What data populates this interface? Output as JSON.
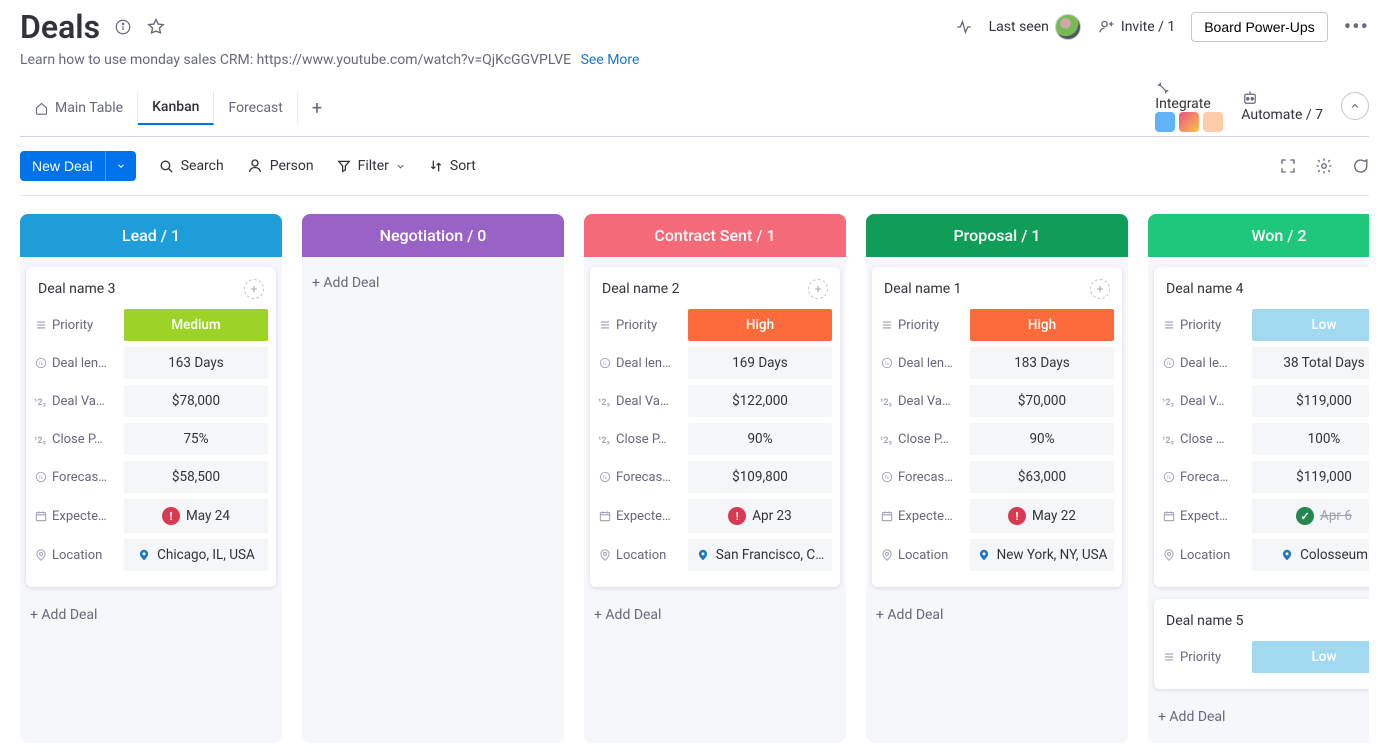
{
  "header": {
    "title": "Deals",
    "subtitle": "Learn how to use monday sales CRM: https://www.youtube.com/watch?v=QjKcGGVPLVE",
    "see_more": "See More",
    "last_seen": "Last seen",
    "invite": "Invite / 1",
    "powerups": "Board Power-Ups"
  },
  "tabs": {
    "items": [
      "Main Table",
      "Kanban",
      "Forecast"
    ],
    "active_index": 1,
    "integrate": "Integrate",
    "automate": "Automate / 7"
  },
  "toolbar": {
    "new_deal": "New Deal",
    "search": "Search",
    "person": "Person",
    "filter": "Filter",
    "sort": "Sort"
  },
  "add_deal_label": "+ Add Deal",
  "field_labels": {
    "priority": "Priority",
    "deal_len": "Deal len…",
    "deal_len2": "Deal le…",
    "deal_val": "Deal Va…",
    "deal_val2": "Deal V…",
    "close_p": "Close P…",
    "close_p2": "Close …",
    "forecast": "Forecas…",
    "forecast2": "Foreca…",
    "expected": "Expecte…",
    "expected2": "Expect…",
    "location": "Location"
  },
  "priority_colors": {
    "High": "#fb6a3b",
    "Medium": "#9cd326",
    "Low": "#a1d9f0"
  },
  "status_colors": {
    "overdue": "#d83a52",
    "done": "#258750"
  },
  "columns": [
    {
      "title": "Lead / 1",
      "color": "#1f9dd9",
      "cards": [
        {
          "name": "Deal name 3",
          "priority": "Medium",
          "deal_len": "163 Days",
          "deal_val": "$78,000",
          "close_p": "75%",
          "forecast": "$58,500",
          "expected": "May 24",
          "expected_status": "overdue",
          "location": "Chicago, IL, USA"
        }
      ]
    },
    {
      "title": "Negotiation / 0",
      "color": "#9862c6",
      "cards": []
    },
    {
      "title": "Contract Sent / 1",
      "color": "#f56a79",
      "cards": [
        {
          "name": "Deal name 2",
          "priority": "High",
          "deal_len": "169 Days",
          "deal_val": "$122,000",
          "close_p": "90%",
          "forecast": "$109,800",
          "expected": "Apr 23",
          "expected_status": "overdue",
          "location": "San Francisco, C…"
        }
      ]
    },
    {
      "title": "Proposal / 1",
      "color": "#0f9d58",
      "cards": [
        {
          "name": "Deal name 1",
          "priority": "High",
          "deal_len": "183 Days",
          "deal_val": "$70,000",
          "close_p": "90%",
          "forecast": "$63,000",
          "expected": "May 22",
          "expected_status": "overdue",
          "location": "New York, NY, USA"
        }
      ]
    },
    {
      "title": "Won / 2",
      "color": "#1ec77c",
      "cards": [
        {
          "name": "Deal name 4",
          "priority": "Low",
          "deal_len": "38 Total Days",
          "deal_val": "$119,000",
          "close_p": "100%",
          "forecast": "$119,000",
          "expected": "Apr 6",
          "expected_strike": true,
          "expected_status": "done",
          "location": "Colosseum"
        },
        {
          "name": "Deal name 5",
          "priority": "Low"
        }
      ]
    }
  ],
  "sliver_color": "#e9445d"
}
